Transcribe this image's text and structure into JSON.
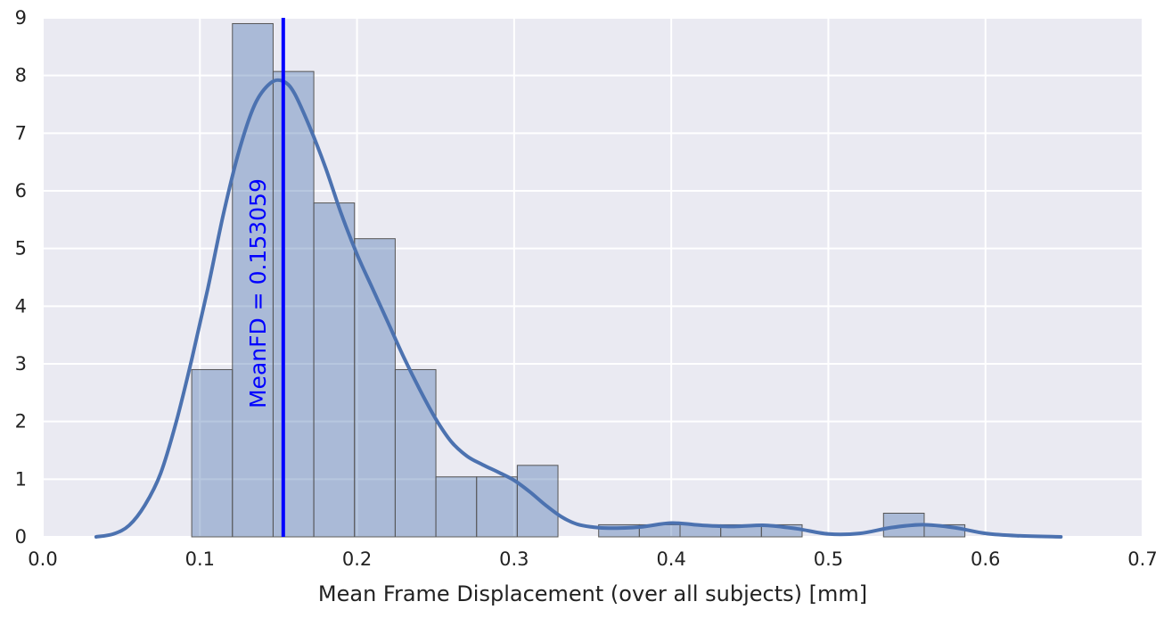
{
  "chart_data": {
    "type": "bar",
    "title": "",
    "xlabel": "Mean Frame Displacement (over all subjects) [mm]",
    "ylabel": "",
    "xlim": [
      0.0,
      0.7
    ],
    "ylim": [
      0,
      9
    ],
    "grid": true,
    "x_ticks": [
      "0.0",
      "0.1",
      "0.2",
      "0.3",
      "0.4",
      "0.5",
      "0.6",
      "0.7"
    ],
    "y_ticks": [
      "0",
      "1",
      "2",
      "3",
      "4",
      "5",
      "6",
      "7",
      "8",
      "9"
    ],
    "bins": {
      "edges": [
        0.0948,
        0.1207,
        0.1466,
        0.1725,
        0.1984,
        0.2243,
        0.2502,
        0.2761,
        0.302,
        0.3279,
        0.3538,
        0.3797,
        0.4056,
        0.4315,
        0.4574,
        0.4833,
        0.5092,
        0.5351,
        0.561,
        0.5869
      ],
      "values": [
        2.9,
        8.9,
        8.07,
        5.79,
        5.17,
        2.9,
        1.04,
        1.04,
        1.24,
        0.0,
        0.21,
        0.21,
        0.21,
        0.21,
        0.21,
        0.0,
        0.0,
        0.41,
        0.21
      ]
    },
    "kde": {
      "x": [
        0.034,
        0.045,
        0.055,
        0.065,
        0.075,
        0.085,
        0.095,
        0.105,
        0.115,
        0.125,
        0.135,
        0.145,
        0.153,
        0.16,
        0.17,
        0.18,
        0.19,
        0.2,
        0.21,
        0.22,
        0.23,
        0.24,
        0.25,
        0.26,
        0.27,
        0.28,
        0.29,
        0.3,
        0.31,
        0.32,
        0.33,
        0.34,
        0.35,
        0.36,
        0.38,
        0.4,
        0.42,
        0.44,
        0.46,
        0.48,
        0.5,
        0.52,
        0.54,
        0.56,
        0.58,
        0.6,
        0.62,
        0.648
      ],
      "y": [
        0.0,
        0.05,
        0.2,
        0.55,
        1.1,
        2.0,
        3.1,
        4.3,
        5.6,
        6.7,
        7.5,
        7.87,
        7.9,
        7.7,
        7.1,
        6.4,
        5.6,
        4.9,
        4.3,
        3.7,
        3.1,
        2.55,
        2.05,
        1.65,
        1.4,
        1.25,
        1.12,
        0.98,
        0.78,
        0.55,
        0.35,
        0.22,
        0.17,
        0.15,
        0.17,
        0.24,
        0.2,
        0.18,
        0.2,
        0.14,
        0.05,
        0.06,
        0.16,
        0.21,
        0.16,
        0.06,
        0.02,
        0.0
      ]
    },
    "vline": {
      "x": 0.153059,
      "label": "MeanFD = 0.153059"
    },
    "colors": {
      "background": "#eaeaf2",
      "grid": "#ffffff",
      "bar_fill": "#4c72b0",
      "bar_edge": "#555555",
      "kde": "#4c72b0",
      "vline": "#0000ff"
    }
  }
}
